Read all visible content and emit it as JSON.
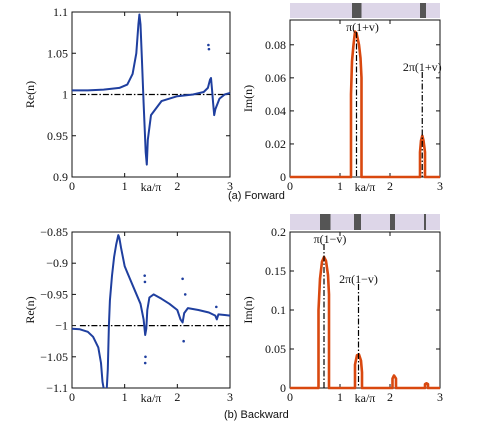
{
  "colors": {
    "re_curve": "#1f3f9f",
    "im_curve": "#d9480f",
    "ref_line": "#000000",
    "band_bg": "#ddd6e8",
    "band_gap": "#555555"
  },
  "captions": {
    "forward": "(a) Forward",
    "backward": "(b) Backward"
  },
  "chart_data": [
    {
      "id": "fw_re",
      "type": "line",
      "xlabel": "ka/π",
      "ylabel": "Re(n)",
      "xlim": [
        0,
        3
      ],
      "ylim": [
        0.9,
        1.1
      ],
      "xticks": [
        "0",
        "1",
        "2",
        "3"
      ],
      "yticks": [
        "0.9",
        "0.95",
        "1",
        "1.05",
        "1.1"
      ],
      "ref_y": 1.0,
      "series": [
        {
          "values": [
            [
              0,
              1.005
            ],
            [
              0.3,
              1.005
            ],
            [
              0.6,
              1.006
            ],
            [
              0.9,
              1.008
            ],
            [
              1.05,
              1.012
            ],
            [
              1.15,
              1.025
            ],
            [
              1.22,
              1.05
            ],
            [
              1.26,
              1.085
            ],
            [
              1.28,
              1.097
            ],
            [
              1.3,
              1.085
            ],
            [
              1.33,
              1.04
            ],
            [
              1.36,
              0.99
            ],
            [
              1.4,
              0.93
            ],
            [
              1.42,
              0.915
            ],
            [
              1.44,
              0.945
            ],
            [
              1.5,
              0.975
            ],
            [
              1.7,
              0.992
            ],
            [
              2.0,
              0.998
            ],
            [
              2.3,
              1.0
            ],
            [
              2.5,
              1.003
            ],
            [
              2.58,
              1.008
            ],
            [
              2.62,
              1.018
            ],
            [
              2.64,
              1.02
            ],
            [
              2.66,
              1.005
            ],
            [
              2.68,
              0.99
            ],
            [
              2.7,
              0.975
            ],
            [
              2.72,
              0.982
            ],
            [
              2.8,
              0.995
            ],
            [
              2.9,
              1.0
            ],
            [
              3.0,
              1.002
            ]
          ]
        }
      ],
      "scatter_points": [
        [
          2.59,
          1.06
        ],
        [
          2.6,
          1.055
        ]
      ]
    },
    {
      "id": "fw_im",
      "type": "line",
      "xlabel": "ka/π",
      "ylabel": "Im(n)",
      "xlim": [
        0,
        3
      ],
      "ylim": [
        0,
        0.095
      ],
      "xticks": [
        "0",
        "1",
        "2",
        "3"
      ],
      "yticks": [
        "0",
        "0.02",
        "0.04",
        "0.06",
        "0.08"
      ],
      "series": [
        {
          "values": [
            [
              0,
              0
            ],
            [
              1.2,
              0
            ],
            [
              1.22,
              0
            ],
            [
              1.22,
              0.05
            ],
            [
              1.24,
              0.07
            ],
            [
              1.27,
              0.08
            ],
            [
              1.3,
              0.088
            ],
            [
              1.33,
              0.087
            ],
            [
              1.38,
              0.08
            ],
            [
              1.41,
              0.072
            ],
            [
              1.43,
              0.06
            ],
            [
              1.43,
              0
            ],
            [
              2.6,
              0
            ],
            [
              2.6,
              0.015
            ],
            [
              2.62,
              0.022
            ],
            [
              2.645,
              0.025
            ],
            [
              2.67,
              0.022
            ],
            [
              2.7,
              0.015
            ],
            [
              2.7,
              0
            ],
            [
              3.0,
              0
            ]
          ]
        }
      ],
      "annotations": [
        {
          "text": "π(1+v)",
          "x": 1.33,
          "ytop": 0.088
        },
        {
          "text": "2π(1+v)",
          "x": 2.645,
          "ytop": 0.025
        }
      ],
      "bands": [
        [
          1.24,
          1.43
        ],
        [
          2.6,
          2.72
        ]
      ]
    },
    {
      "id": "bw_re",
      "type": "line",
      "xlabel": "ka/π",
      "ylabel": "Re(n)",
      "xlim": [
        0,
        3
      ],
      "ylim": [
        -1.1,
        -0.85
      ],
      "xticks": [
        "0",
        "1",
        "2",
        "3"
      ],
      "yticks": [
        "−1.1",
        "−1.05",
        "−1",
        "−0.95",
        "−0.9",
        "−0.85"
      ],
      "ref_y": -1.0,
      "series": [
        {
          "values": [
            [
              0,
              -1.005
            ],
            [
              0.15,
              -1.006
            ],
            [
              0.3,
              -1.01
            ],
            [
              0.4,
              -1.018
            ],
            [
              0.5,
              -1.035
            ],
            [
              0.55,
              -1.06
            ],
            [
              0.58,
              -1.09
            ],
            [
              0.6,
              -1.1
            ]
          ]
        },
        {
          "values": [
            [
              0.66,
              -1.1
            ],
            [
              0.68,
              -1.07
            ],
            [
              0.7,
              -1.0
            ],
            [
              0.72,
              -0.96
            ],
            [
              0.76,
              -0.92
            ],
            [
              0.8,
              -0.89
            ],
            [
              0.84,
              -0.87
            ],
            [
              0.88,
              -0.855
            ],
            [
              0.9,
              -0.86
            ],
            [
              0.93,
              -0.875
            ],
            [
              1.0,
              -0.905
            ],
            [
              1.1,
              -0.925
            ],
            [
              1.2,
              -0.945
            ],
            [
              1.3,
              -0.965
            ],
            [
              1.36,
              -0.99
            ],
            [
              1.39,
              -1.015
            ],
            [
              1.41,
              -1.005
            ],
            [
              1.43,
              -0.975
            ],
            [
              1.47,
              -0.955
            ],
            [
              1.55,
              -0.95
            ],
            [
              1.7,
              -0.957
            ],
            [
              1.85,
              -0.965
            ],
            [
              2.0,
              -0.975
            ],
            [
              2.06,
              -0.99
            ],
            [
              2.1,
              -0.995
            ],
            [
              2.13,
              -0.98
            ],
            [
              2.2,
              -0.972
            ],
            [
              2.4,
              -0.975
            ],
            [
              2.6,
              -0.979
            ],
            [
              2.72,
              -0.984
            ],
            [
              2.75,
              -0.99
            ],
            [
              2.78,
              -0.982
            ],
            [
              2.9,
              -0.983
            ],
            [
              3.0,
              -0.984
            ]
          ]
        }
      ],
      "scatter_points": [
        [
          1.38,
          -0.92
        ],
        [
          1.385,
          -0.93
        ],
        [
          1.39,
          -1.06
        ],
        [
          1.395,
          -1.05
        ],
        [
          2.1,
          -0.925
        ],
        [
          2.12,
          -1.025
        ],
        [
          2.15,
          -0.95
        ],
        [
          2.74,
          -0.97
        ]
      ]
    },
    {
      "id": "bw_im",
      "type": "line",
      "xlabel": "ka/π",
      "ylabel": "Im(n)",
      "xlim": [
        0,
        3
      ],
      "ylim": [
        0,
        0.2
      ],
      "xticks": [
        "0",
        "1",
        "2",
        "3"
      ],
      "yticks": [
        "0",
        "0.05",
        "0.1",
        "0.15",
        "0.2"
      ],
      "series": [
        {
          "values": [
            [
              0,
              0
            ],
            [
              0.57,
              0
            ],
            [
              0.57,
              0.1
            ],
            [
              0.6,
              0.14
            ],
            [
              0.64,
              0.162
            ],
            [
              0.68,
              0.168
            ],
            [
              0.72,
              0.163
            ],
            [
              0.76,
              0.145
            ],
            [
              0.78,
              0.12
            ],
            [
              0.78,
              0
            ],
            [
              1.3,
              0
            ],
            [
              1.3,
              0.03
            ],
            [
              1.34,
              0.042
            ],
            [
              1.38,
              0.043
            ],
            [
              1.42,
              0.035
            ],
            [
              1.44,
              0.02
            ],
            [
              1.44,
              0
            ],
            [
              2.05,
              0
            ],
            [
              2.05,
              0.012
            ],
            [
              2.08,
              0.016
            ],
            [
              2.12,
              0.012
            ],
            [
              2.12,
              0
            ],
            [
              2.7,
              0
            ],
            [
              2.7,
              0.005
            ],
            [
              2.73,
              0.006
            ],
            [
              2.76,
              0.005
            ],
            [
              2.76,
              0
            ],
            [
              3.0,
              0
            ]
          ]
        }
      ],
      "annotations": [
        {
          "text": "π(1−v)",
          "x": 0.68,
          "ytop": 0.168
        },
        {
          "text": "2π(1−v)",
          "x": 1.37,
          "ytop": 0.043
        }
      ],
      "bands": [
        [
          0.6,
          0.81
        ],
        [
          1.28,
          1.42
        ],
        [
          2.0,
          2.1
        ],
        [
          2.68,
          2.72
        ]
      ]
    }
  ]
}
